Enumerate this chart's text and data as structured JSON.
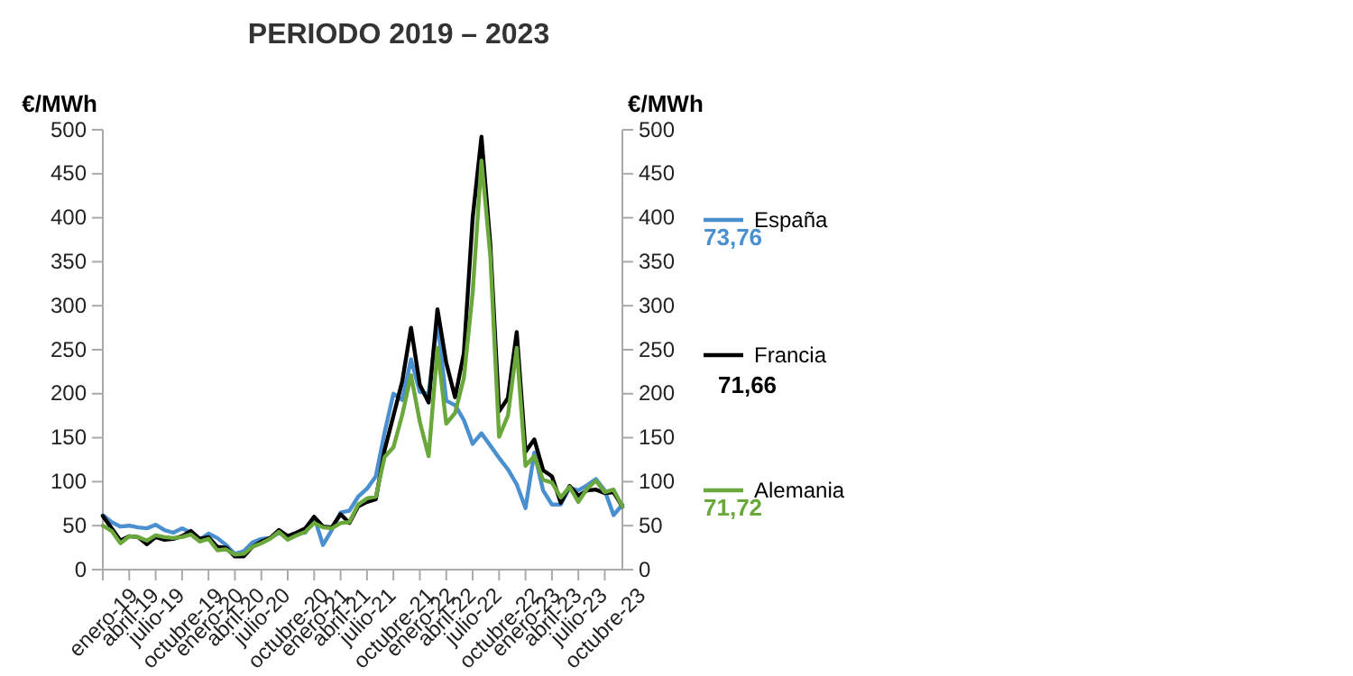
{
  "chart_data": {
    "type": "line",
    "title": "PERIODO 2019 – 2023",
    "ylabel": "€/MWh",
    "y2label": "€/MWh",
    "categories": [
      "enero-19",
      null,
      null,
      "abril-19",
      null,
      null,
      "julio-19",
      null,
      null,
      "octubre-19",
      null,
      null,
      "enero-20",
      null,
      null,
      "abril-20",
      null,
      null,
      "julio-20",
      null,
      null,
      "octubre-20",
      null,
      null,
      "enero-21",
      null,
      null,
      "abril-21",
      null,
      null,
      "julio-21",
      null,
      null,
      "octubre-21",
      null,
      null,
      "enero-22",
      null,
      null,
      "abril-22",
      null,
      null,
      "julio-22",
      null,
      null,
      "octubre-22",
      null,
      null,
      "enero-23",
      null,
      null,
      "abril-23",
      null,
      null,
      "julio-23",
      null,
      null,
      "octubre-23",
      null,
      null
    ],
    "series": [
      {
        "name": "España",
        "color": "#4a90d0",
        "values": [
          62,
          54,
          49,
          50,
          48,
          47,
          51,
          45,
          42,
          47,
          42,
          34,
          41,
          36,
          28,
          18,
          21,
          31,
          35,
          36,
          42,
          37,
          42,
          42,
          60,
          28,
          45,
          65,
          67,
          83,
          92,
          106,
          156,
          200,
          193,
          239,
          202,
          200,
          283,
          192,
          187,
          170,
          143,
          155,
          141,
          127,
          114,
          97,
          70,
          133,
          90,
          74,
          74,
          93,
          90,
          96,
          103,
          90,
          62,
          73.76
        ]
      },
      {
        "name": "Francia",
        "color": "#000000",
        "values": [
          61,
          47,
          33,
          38,
          37,
          29,
          37,
          34,
          35,
          38,
          44,
          35,
          37,
          26,
          25,
          15,
          15,
          26,
          32,
          36,
          45,
          38,
          42,
          47,
          60,
          49,
          48,
          63,
          53,
          72,
          77,
          80,
          136,
          175,
          214,
          275,
          210,
          190,
          296,
          235,
          196,
          246,
          400,
          492,
          370,
          180,
          195,
          270,
          134,
          148,
          113,
          106,
          76,
          95,
          84,
          90,
          91,
          87,
          88,
          71.66
        ]
      },
      {
        "name": "Alemania",
        "color": "#6aa83c",
        "values": [
          50,
          44,
          30,
          38,
          37,
          33,
          39,
          37,
          36,
          37,
          40,
          32,
          35,
          22,
          23,
          17,
          18,
          26,
          30,
          35,
          43,
          34,
          39,
          43,
          53,
          48,
          47,
          53,
          54,
          74,
          81,
          83,
          128,
          139,
          176,
          221,
          168,
          129,
          252,
          166,
          178,
          218,
          315,
          465,
          357,
          151,
          175,
          252,
          118,
          129,
          102,
          99,
          82,
          94,
          77,
          92,
          101,
          88,
          91,
          71.72
        ]
      }
    ],
    "annotations": [
      "73,76",
      "71,66",
      "71,72"
    ],
    "ylim": [
      0,
      500
    ],
    "yticks": [
      0,
      50,
      100,
      150,
      200,
      250,
      300,
      350,
      400,
      450,
      500
    ],
    "y2lim": [
      0,
      500
    ],
    "y2ticks": [
      0,
      50,
      100,
      150,
      200,
      250,
      300,
      350,
      400,
      450,
      500
    ],
    "legend": "right",
    "marker": "none",
    "line_style": "solid"
  }
}
